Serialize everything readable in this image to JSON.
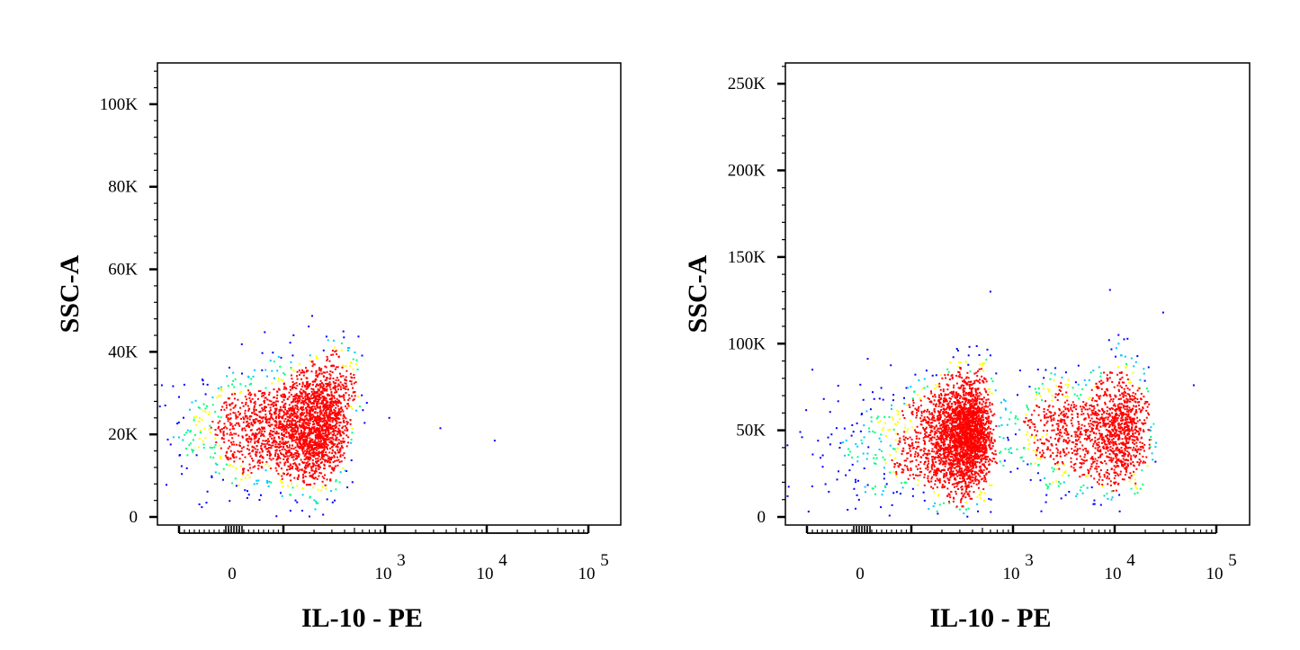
{
  "chart_data": [
    {
      "type": "scatter",
      "xlabel": "IL-10 - PE",
      "ylabel": "SSC-A",
      "x_scale": "biexponential",
      "x_ticks": [
        {
          "value": 0,
          "base": "0",
          "exp": ""
        },
        {
          "value": 1000,
          "base": "10",
          "exp": "3"
        },
        {
          "value": 10000,
          "base": "10",
          "exp": "4"
        },
        {
          "value": 100000,
          "base": "10",
          "exp": "5"
        }
      ],
      "ylim": [
        0,
        110000
      ],
      "y_ticks": [
        {
          "value": 0,
          "label": "0"
        },
        {
          "value": 20000,
          "label": "20K"
        },
        {
          "value": 40000,
          "label": "40K"
        },
        {
          "value": 60000,
          "label": "60K"
        },
        {
          "value": 80000,
          "label": "80K"
        },
        {
          "value": 100000,
          "label": "100K"
        }
      ],
      "grid": false,
      "density_colors": [
        "#0000ff",
        "#00c8ff",
        "#00ff80",
        "#ffff00",
        "#ff0000"
      ],
      "populations": [
        {
          "x_center": 150,
          "x_spread": 110,
          "y_center": 21000,
          "y_spread": 6500,
          "count": 2300
        },
        {
          "x_center": 280,
          "x_spread": 130,
          "y_center": 30000,
          "y_spread": 6000,
          "count": 380
        }
      ],
      "outliers": [
        [
          3500,
          21500
        ],
        [
          12000,
          18500
        ],
        [
          1100,
          24000
        ]
      ]
    },
    {
      "type": "scatter",
      "xlabel": "IL-10 - PE",
      "ylabel": "SSC-A",
      "x_scale": "biexponential",
      "x_ticks": [
        {
          "value": 0,
          "base": "0",
          "exp": ""
        },
        {
          "value": 1000,
          "base": "10",
          "exp": "3"
        },
        {
          "value": 10000,
          "base": "10",
          "exp": "4"
        },
        {
          "value": 100000,
          "base": "10",
          "exp": "5"
        }
      ],
      "ylim": [
        0,
        262000
      ],
      "y_ticks": [
        {
          "value": 0,
          "label": "0"
        },
        {
          "value": 50000,
          "label": "50K"
        },
        {
          "value": 100000,
          "label": "100K"
        },
        {
          "value": 150000,
          "label": "150K"
        },
        {
          "value": 200000,
          "label": "200K"
        },
        {
          "value": 250000,
          "label": "250K"
        }
      ],
      "grid": false,
      "density_colors": [
        "#0000ff",
        "#00c8ff",
        "#00ff80",
        "#ffff00",
        "#ff0000"
      ],
      "populations": [
        {
          "x_center": 320,
          "x_spread": 130,
          "y_center": 48000,
          "y_spread": 16000,
          "count": 2600
        },
        {
          "x_center": 9000,
          "x_spread": 5500,
          "y_center": 50000,
          "y_spread": 17000,
          "count": 1300
        },
        {
          "x_center": 2500,
          "x_spread": 1200,
          "y_center": 48000,
          "y_spread": 18000,
          "count": 260
        },
        {
          "x_center": 100,
          "x_spread": 120,
          "y_center": 30000,
          "y_spread": 12000,
          "count": 220
        }
      ],
      "outliers": [
        [
          -150,
          12000
        ],
        [
          -100,
          85000
        ],
        [
          600,
          130000
        ],
        [
          9000,
          131000
        ],
        [
          30000,
          118000
        ],
        [
          60000,
          76000
        ]
      ]
    }
  ]
}
